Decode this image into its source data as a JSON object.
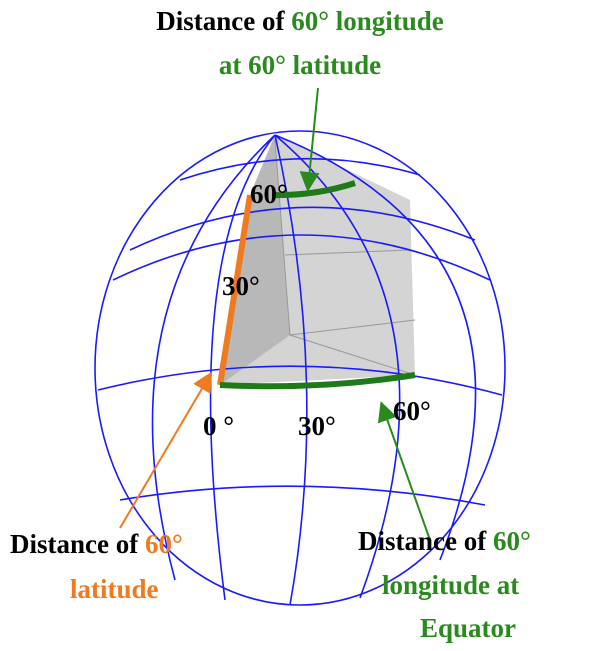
{
  "top_label": {
    "prefix": "Distance of",
    "line1_highlight": "60° longitude",
    "line2": "at 60° latitude"
  },
  "bottom_left_label": {
    "prefix": "Distance of",
    "highlight": "60°",
    "line2": "latitude"
  },
  "bottom_right_label": {
    "prefix": "Distance of",
    "highlight": "60°",
    "line2": "longitude at",
    "line3": "Equator"
  },
  "globe": {
    "latitude_marks": [
      "30°",
      "60°"
    ],
    "longitude_marks": [
      "0 °",
      "30°",
      "60°"
    ]
  }
}
